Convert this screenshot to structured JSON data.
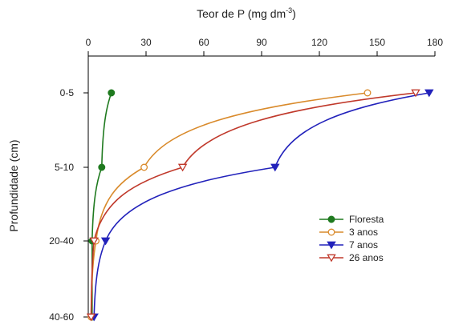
{
  "chart_data": {
    "type": "line",
    "x_axis_title": "Teor de P (mg dm",
    "x_axis_title_sup": "-3",
    "x_axis_title_end": ")",
    "ylabel": "Profundidade (cm)",
    "xlim": [
      0,
      180
    ],
    "x_ticks": [
      0,
      30,
      60,
      90,
      120,
      150,
      180
    ],
    "x_ticks_position": "top",
    "categories": [
      "0-5",
      "5-10",
      "20-40",
      "40-60"
    ],
    "grid": false,
    "legend_position": "center-right",
    "series": [
      {
        "name": "Floresta",
        "color": "#1f7a1f",
        "marker": "circle-filled",
        "values": [
          12,
          7,
          2,
          2
        ]
      },
      {
        "name": "3 anos",
        "color": "#d98a2b",
        "marker": "circle-open",
        "values": [
          145,
          29,
          4,
          1.5
        ]
      },
      {
        "name": "7 anos",
        "color": "#2222bb",
        "marker": "triangle-down-filled",
        "values": [
          177,
          97,
          9,
          3
        ]
      },
      {
        "name": "26 anos",
        "color": "#c0392b",
        "marker": "triangle-down-open",
        "values": [
          170,
          49,
          3,
          1.5
        ]
      }
    ]
  }
}
